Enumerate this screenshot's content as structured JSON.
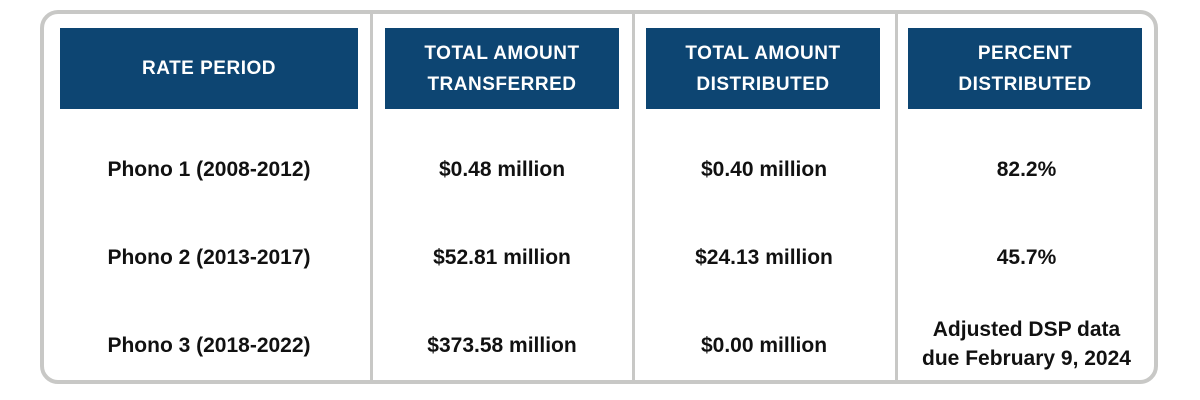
{
  "table": {
    "headers": [
      {
        "lines": [
          "RATE PERIOD"
        ]
      },
      {
        "lines": [
          "TOTAL AMOUNT",
          "TRANSFERRED"
        ]
      },
      {
        "lines": [
          "TOTAL AMOUNT",
          "DISTRIBUTED"
        ]
      },
      {
        "lines": [
          "PERCENT",
          "DISTRIBUTED"
        ]
      }
    ],
    "rows": [
      {
        "rate_period": "Phono 1 (2008-2012)",
        "transferred": "$0.48 million",
        "distributed": "$0.40 million",
        "percent": [
          "82.2%"
        ]
      },
      {
        "rate_period": "Phono 2 (2013-2017)",
        "transferred": "$52.81 million",
        "distributed": "$24.13 million",
        "percent": [
          "45.7%"
        ]
      },
      {
        "rate_period": "Phono 3 (2018-2022)",
        "transferred": "$373.58 million",
        "distributed": "$0.00 million",
        "percent": [
          "Adjusted DSP data",
          "due February 9, 2024"
        ]
      }
    ]
  },
  "colors": {
    "header_background": "#0d4572",
    "header_text": "#ffffff",
    "border": "#c8c8c6",
    "body_text": "#111111"
  }
}
